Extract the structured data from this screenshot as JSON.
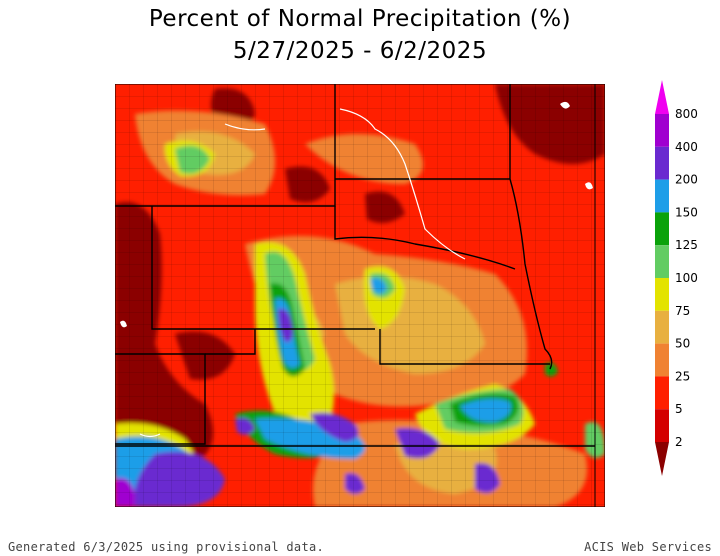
{
  "title": {
    "line1": "Percent of Normal Precipitation (%)",
    "line2": "5/27/2025 - 6/2/2025"
  },
  "legend": {
    "labels": [
      "2",
      "5",
      "25",
      "50",
      "75",
      "100",
      "125",
      "150",
      "200",
      "400",
      "800"
    ],
    "colors": [
      "#8b0000",
      "#d40000",
      "#ff1f00",
      "#f08232",
      "#e8b040",
      "#e3e300",
      "#62cc62",
      "#0aa20a",
      "#1e9ee8",
      "#6a2ad0",
      "#a000d0",
      "#f000f0"
    ]
  },
  "footer": {
    "left": "Generated 6/3/2025 using provisional data.",
    "right": "ACIS Web Services"
  },
  "map": {
    "background_color": "#ff1f00"
  }
}
